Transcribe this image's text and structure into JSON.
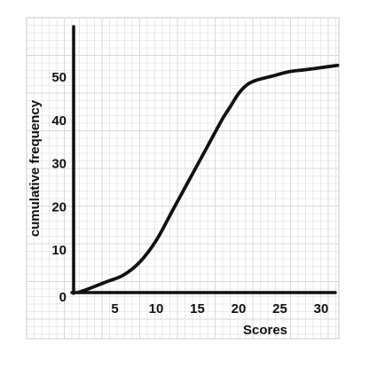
{
  "chart_data": {
    "type": "line",
    "title": "",
    "xlabel": "Scores",
    "ylabel": "cumulative frequency",
    "xlim": [
      0,
      32
    ],
    "ylim": [
      0,
      60
    ],
    "x_ticks": [
      "5",
      "10",
      "15",
      "20",
      "25",
      "30"
    ],
    "y_ticks": [
      "0",
      "10",
      "20",
      "30",
      "40",
      "50"
    ],
    "grid": true,
    "series": [
      {
        "x": [
          0.5,
          2,
          4,
          6,
          8,
          10,
          12,
          14,
          16,
          18,
          19,
          20,
          21,
          22,
          24,
          26,
          28,
          30,
          32
        ],
        "y": [
          0,
          1,
          2.5,
          4,
          7,
          12,
          19,
          26,
          33,
          40,
          43,
          46,
          48,
          49,
          50,
          51,
          51.5,
          52,
          52.5
        ]
      }
    ],
    "colors": {
      "line": "#111111",
      "axis": "#111111",
      "grid": "#d9d9d9",
      "grid_border": "#c8c8c8"
    }
  }
}
